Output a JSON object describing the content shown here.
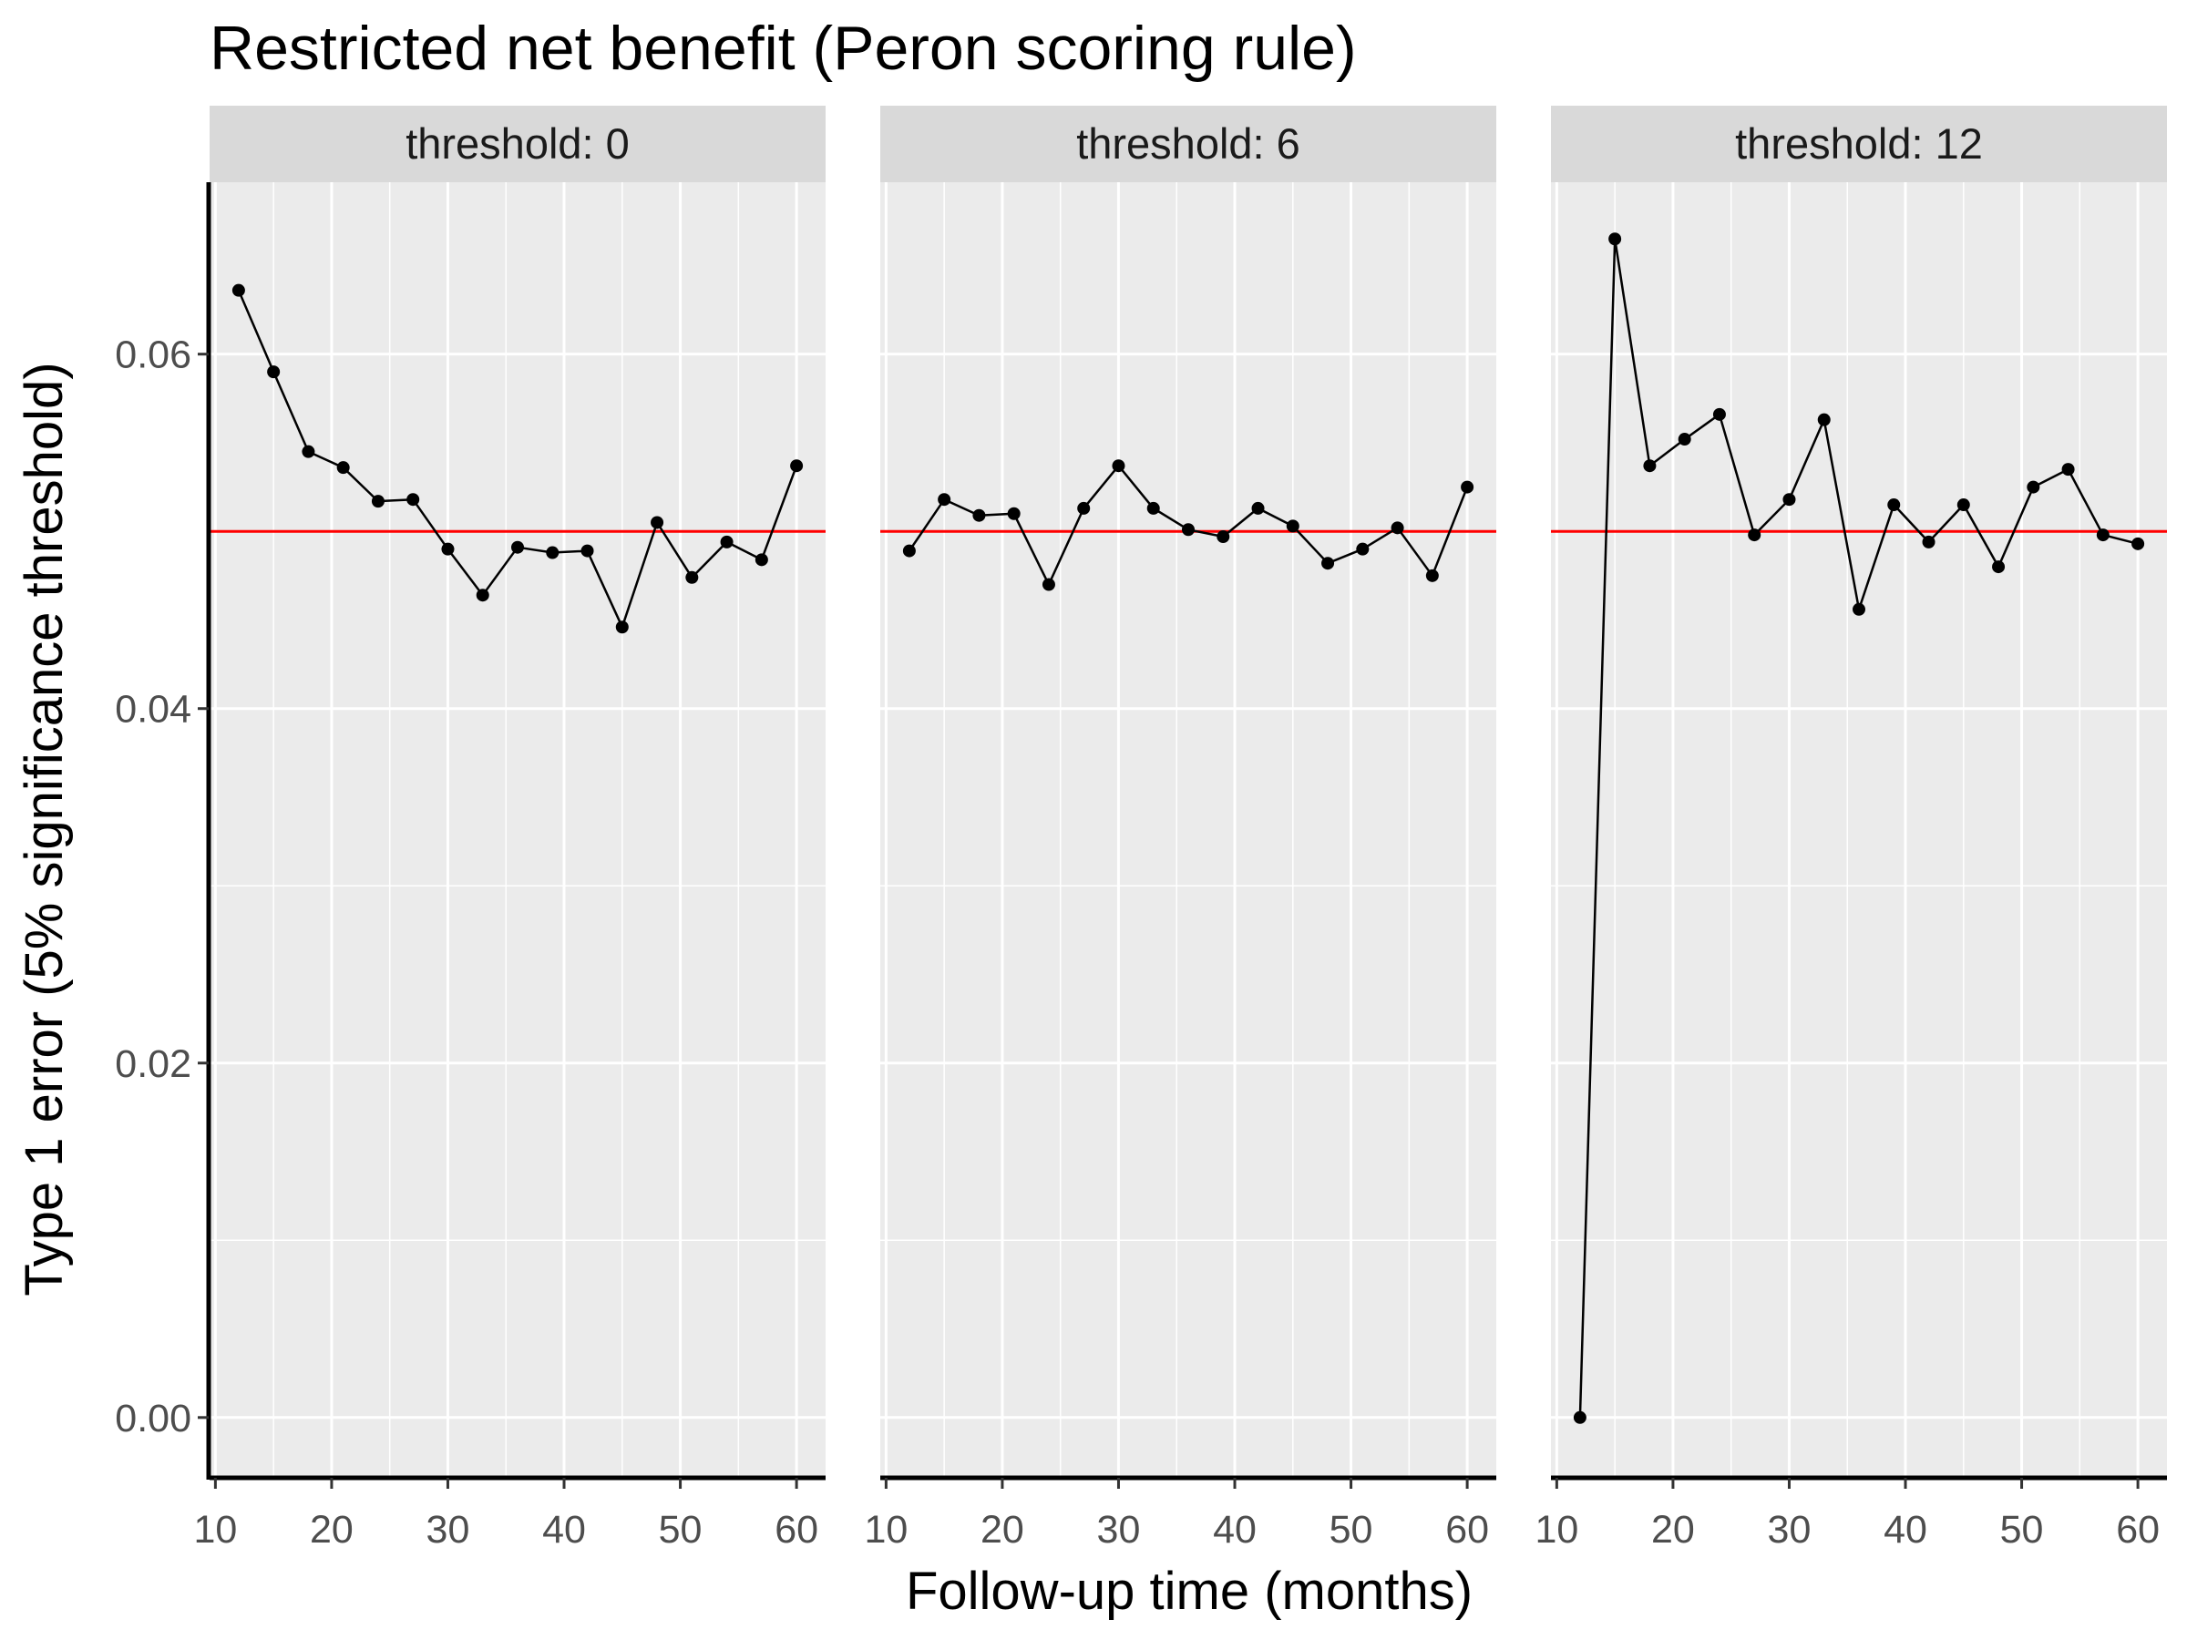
{
  "chart_data": {
    "type": "line",
    "title": "Restricted net benefit (Peron scoring rule)",
    "xlabel": "Follow-up time (months)",
    "ylabel": "Type 1 error (5% significance threshold)",
    "xlim": [
      9.5,
      62.5
    ],
    "ylim": [
      -0.0033,
      0.0697
    ],
    "x_ticks": [
      10,
      20,
      30,
      40,
      50,
      60
    ],
    "x_tick_labels": [
      "10",
      "20",
      "30",
      "40",
      "50",
      "60"
    ],
    "y_ticks": [
      0.0,
      0.02,
      0.04,
      0.06
    ],
    "y_tick_labels": [
      "0.00",
      "0.02",
      "0.04",
      "0.06"
    ],
    "reference_line": {
      "y": 0.05,
      "color": "#ff0000"
    },
    "grid": true,
    "colors": {
      "panel_background": "#ebebeb",
      "grid": "#ffffff",
      "strip_background": "#d9d9d9",
      "series": "#000000",
      "reference": "#ff0000"
    },
    "x": [
      12,
      15,
      18,
      21,
      24,
      27,
      30,
      33,
      36,
      39,
      42,
      45,
      48,
      51,
      54,
      57,
      60
    ],
    "panels": [
      {
        "label": "threshold: 0",
        "values": [
          0.0636,
          0.059,
          0.0545,
          0.0536,
          0.0517,
          0.0518,
          0.049,
          0.0464,
          0.0491,
          0.0488,
          0.0489,
          0.0446,
          0.0505,
          0.0474,
          0.0494,
          0.0484,
          0.0537
        ]
      },
      {
        "label": "threshold: 6",
        "values": [
          0.0489,
          0.0518,
          0.0509,
          0.051,
          0.047,
          0.0513,
          0.0537,
          0.0513,
          0.0501,
          0.0497,
          0.0513,
          0.0503,
          0.0482,
          0.049,
          0.0502,
          0.0475,
          0.0525
        ]
      },
      {
        "label": "threshold: 12",
        "values": [
          0.0,
          0.0665,
          0.0537,
          0.0552,
          0.0566,
          0.0498,
          0.0518,
          0.0563,
          0.0456,
          0.0515,
          0.0494,
          0.0515,
          0.048,
          0.0525,
          0.0535,
          0.0498,
          0.0493
        ]
      }
    ]
  }
}
